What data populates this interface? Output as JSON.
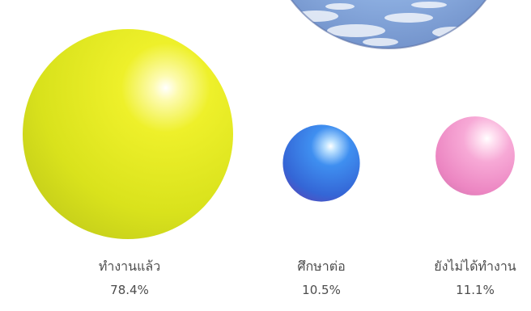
{
  "chart_data": {
    "type": "bubble",
    "categories": [
      "ทำงานแล้ว",
      "ศึกษาต่อ",
      "ยังไม่ได้ทำงาน"
    ],
    "values": [
      78.4,
      10.5,
      11.1
    ],
    "value_labels": [
      "78.4%",
      "10.5%",
      "11.1%"
    ],
    "colors": [
      "#e6ea1a",
      "#3f7fe0",
      "#f08cc6"
    ],
    "title": "",
    "xlabel": "",
    "ylabel": ""
  },
  "decoration": {
    "sky_globe_color": "#7fa3d9"
  }
}
